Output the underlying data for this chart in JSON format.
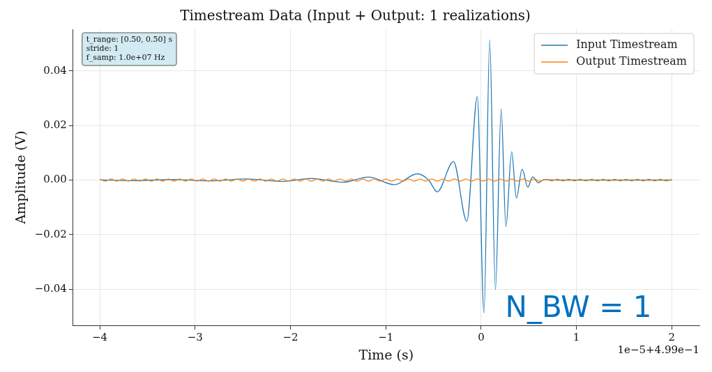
{
  "chart_data": {
    "type": "line",
    "title": "Timestream Data (Input + Output: 1 realizations)",
    "xlabel": "Time (s)",
    "ylabel": "Amplitude (V)",
    "annotations": [
      "t_range: [0.50, 0.50] s\nstride: 1\nf_samp: 1.0e+07 Hz",
      "N_BW = 1",
      "1e−5+4.99e−1"
    ],
    "xlim": [
      -4.28,
      2.29
    ],
    "ylim": [
      -0.0533,
      0.0553
    ],
    "xticks": [
      {
        "value": -4,
        "label": "−4"
      },
      {
        "value": -3,
        "label": "−3"
      },
      {
        "value": -2,
        "label": "−2"
      },
      {
        "value": -1,
        "label": "−1"
      },
      0,
      1,
      2
    ],
    "yticks": [
      {
        "value": -0.04,
        "label": "−0.04"
      },
      {
        "value": -0.02,
        "label": "−0.02"
      },
      {
        "value": 0,
        "label": "0.00"
      },
      0.02,
      0.04
    ],
    "grid": true,
    "legend": "top right",
    "marker": "none",
    "line_style": "solid",
    "series": [
      {
        "name": "Input Timestream",
        "color": "#1f77b4",
        "x": [
          -4,
          -3.65,
          -3.23,
          -2.85,
          -2.46,
          -2.09,
          -1.78,
          -1.45,
          -1.18,
          -0.91,
          -0.67,
          -0.55,
          -0.46,
          -0.29,
          -0.15,
          -0.04,
          0.03,
          0.09,
          0.15,
          0.21,
          0.26,
          0.32,
          0.37,
          0.43,
          0.49,
          0.54,
          0.6,
          0.66,
          0.8,
          1,
          1.5,
          2
        ],
        "values": [
          0.0001,
          -0.0002,
          0.0002,
          -0.0003,
          0.0004,
          -0.0005,
          0.0006,
          -0.0008,
          0.0011,
          -0.0017,
          0.0023,
          0,
          -0.0043,
          0.0068,
          -0.0151,
          0.0306,
          -0.0487,
          0.0514,
          -0.0401,
          0.0261,
          -0.0171,
          0.0104,
          -0.0066,
          0.004,
          -0.0026,
          0.0012,
          -0.001,
          0.0002,
          0,
          0,
          0,
          0
        ]
      },
      {
        "name": "Output Timestream",
        "color": "#ff7f0e",
        "x": [
          -4,
          -3.94,
          -3.88,
          -3.82,
          -3.76,
          -3.7,
          -3.64,
          -3.58,
          -3.52,
          -3.46,
          -3.4,
          -3.34,
          -3.28,
          -3.22,
          -3.16,
          -3.1,
          -3.04,
          -2.98,
          -2.92,
          -2.86,
          -2.8,
          -2.74,
          -2.68,
          -2.62,
          -2.56,
          -2.5,
          -2.44,
          -2.38,
          -2.32,
          -2.26,
          -2.2,
          -2.14,
          -2.08,
          -2.02,
          -1.96,
          -1.9,
          -1.84,
          -1.78,
          -1.72,
          -1.66,
          -1.6,
          -1.54,
          -1.48,
          -1.42,
          -1.36,
          -1.3,
          -1.24,
          -1.18,
          -1.12,
          -1.06,
          -1,
          -0.94,
          -0.88,
          -0.82,
          -0.76,
          -0.7,
          -0.64,
          -0.58,
          -0.52,
          -0.46,
          -0.4,
          -0.34,
          -0.28,
          -0.22,
          -0.16,
          -0.1,
          -0.04,
          0.02,
          0.08,
          0.14,
          0.2,
          0.26,
          0.32,
          0.38,
          0.44,
          0.5,
          0.56,
          0.62,
          0.68,
          0.74,
          0.8,
          0.86,
          0.92,
          0.98,
          1.04,
          1.1,
          1.16,
          1.22,
          1.28,
          1.34,
          1.4,
          1.46,
          1.52,
          1.58,
          1.64,
          1.7,
          1.76,
          1.82,
          1.88,
          1.94,
          2
        ],
        "values": [
          0.0003,
          -0.0004,
          0.0004,
          -0.0004,
          0.0004,
          -0.0004,
          0.0004,
          -0.0004,
          0.0004,
          -0.0004,
          0.0004,
          -0.0004,
          0.0004,
          -0.0004,
          0.0004,
          -0.0004,
          0.0004,
          -0.0004,
          0.0004,
          -0.0004,
          0.0004,
          -0.0004,
          0.0004,
          -0.0004,
          0.0004,
          -0.0004,
          0.0004,
          -0.0004,
          0.0004,
          -0.0004,
          0.0004,
          -0.0004,
          0.0004,
          -0.0004,
          0.0004,
          -0.0004,
          0.0004,
          -0.0004,
          0.0004,
          -0.0004,
          0.0004,
          -0.0004,
          0.0004,
          -0.0004,
          0.0004,
          -0.0004,
          0.0004,
          -0.0004,
          0.0004,
          -0.0004,
          0.0004,
          -0.0004,
          0.0004,
          -0.0004,
          0.0004,
          -0.0004,
          0.0004,
          -0.0004,
          0.0004,
          -0.0004,
          0.0004,
          -0.0004,
          0.0004,
          -0.0004,
          0.0004,
          -0.0004,
          0.0004,
          -0.0004,
          0.0004,
          -0.0004,
          0.0004,
          -0.0004,
          0.0004,
          -0.0004,
          0.0004,
          -0.0004,
          0.0004,
          -0.0004,
          0.0003,
          -0.0003,
          0.0003,
          -0.0003,
          0.0003,
          -0.0003,
          0.0003,
          -0.0003,
          0.0003,
          -0.0003,
          0.0003,
          -0.0003,
          0.0003,
          -0.0003,
          0.0003,
          -0.0003,
          0.0003,
          -0.0003,
          0.0003,
          -0.0003,
          0.0003,
          -0.0003,
          0.0003
        ]
      }
    ]
  }
}
